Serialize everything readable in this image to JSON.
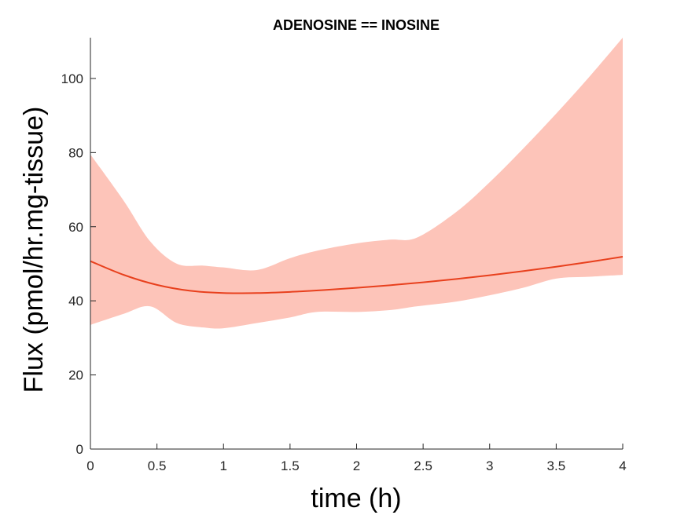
{
  "chart_data": {
    "type": "area",
    "title": "ADENOSINE == INOSINE",
    "xlabel": "time (h)",
    "ylabel": "Flux (pmol/hr.mg-tissue)",
    "xlim": [
      0,
      4
    ],
    "ylim": [
      0,
      111
    ],
    "xticks": [
      0,
      0.5,
      1,
      1.5,
      2,
      2.5,
      3,
      3.5,
      4
    ],
    "xtick_labels": [
      "0",
      "0.5",
      "1",
      "1.5",
      "2",
      "2.5",
      "3",
      "3.5",
      "4"
    ],
    "yticks": [
      0,
      20,
      40,
      60,
      80,
      100
    ],
    "ytick_labels": [
      "0",
      "20",
      "40",
      "60",
      "80",
      "100"
    ],
    "grid": false,
    "legend": "none",
    "colors": {
      "line": "#e8401d",
      "band": "#fdc4b9"
    },
    "series": [
      {
        "x": [
          0,
          0.25,
          0.5,
          0.75,
          1,
          1.25,
          1.5,
          1.75,
          2,
          2.25,
          2.5,
          2.75,
          3,
          3.25,
          3.5,
          3.75,
          4
        ],
        "y": [
          50.7,
          47.0,
          44.3,
          42.7,
          42.1,
          42.1,
          42.4,
          42.9,
          43.5,
          44.2,
          45.0,
          45.9,
          46.9,
          48.0,
          49.2,
          50.5,
          51.9
        ]
      }
    ],
    "band": {
      "x": [
        0,
        0.25,
        0.45,
        0.65,
        0.85,
        1,
        1.25,
        1.5,
        1.7,
        2,
        2.25,
        2.45,
        2.75,
        3,
        3.25,
        3.5,
        3.75,
        4
      ],
      "lower": [
        33.5,
        36.5,
        38.5,
        34.0,
        32.8,
        32.6,
        34.0,
        35.5,
        37.0,
        37.0,
        37.5,
        38.5,
        39.8,
        41.5,
        43.5,
        46.0,
        46.5,
        47.0
      ],
      "upper": [
        79.5,
        67.0,
        56.0,
        50.0,
        49.5,
        49.0,
        48.3,
        51.5,
        53.5,
        55.5,
        56.5,
        57.0,
        64.0,
        72.0,
        81.0,
        90.5,
        100.5,
        111.0
      ]
    }
  }
}
